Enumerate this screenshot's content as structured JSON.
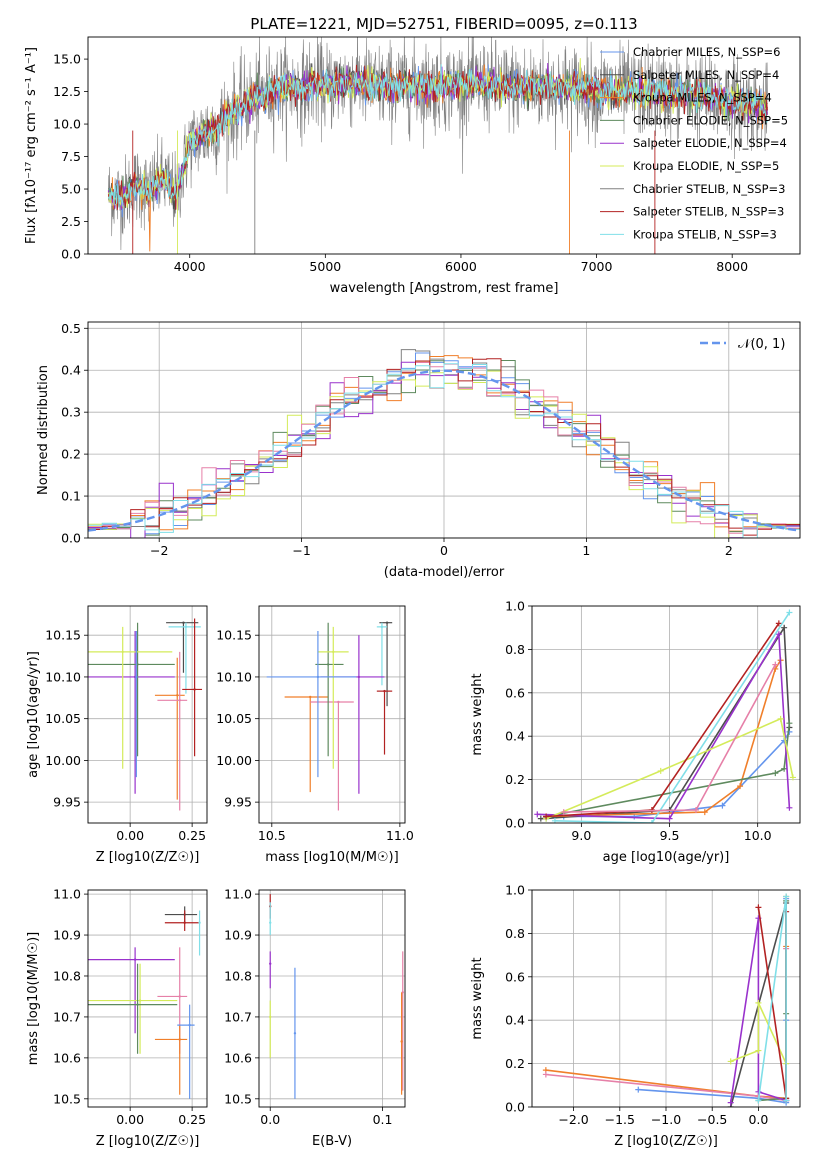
{
  "chart_data": [
    {
      "id": "spectrum",
      "type": "line",
      "title": "PLATE=1221, MJD=52751, FIBERID=0095, z=0.113",
      "xlabel": "wavelength [Angstrom, rest frame]",
      "ylabel": "Flux [fλ10⁻¹⁷ erg cm⁻² s⁻¹ A⁻¹]",
      "xlim": [
        3250,
        8500
      ],
      "ylim": [
        0,
        16.7
      ],
      "xticks": [
        4000,
        5000,
        6000,
        7000,
        8000
      ],
      "yticks": [
        0.0,
        2.5,
        5.0,
        7.5,
        10.0,
        12.5,
        15.0
      ],
      "grid": false,
      "legend_position": "top-right",
      "series": [
        {
          "name": "Chabrier MILES, N_SSP=6",
          "color": "#6495ed"
        },
        {
          "name": "Salpeter MILES, N_SSP=4",
          "color": "#4d4d4d"
        },
        {
          "name": "Kroupa MILES, N_SSP=4",
          "color": "#f07f2a"
        },
        {
          "name": "Chabrier ELODIE, N_SSP=5",
          "color": "#5e8a5e"
        },
        {
          "name": "Salpeter ELODIE, N_SSP=4",
          "color": "#9932cc"
        },
        {
          "name": "Kroupa ELODIE, N_SSP=5",
          "color": "#d4eb5a"
        },
        {
          "name": "Chabrier STELIB, N_SSP=3",
          "color": "#808080"
        },
        {
          "name": "Salpeter STELIB, N_SSP=3",
          "color": "#b22222"
        },
        {
          "name": "Kroupa STELIB, N_SSP=3",
          "color": "#80dfe8"
        }
      ],
      "continuum": {
        "x": [
          3400,
          3500,
          3600,
          3700,
          3800,
          3900,
          4000,
          4100,
          4200,
          4300,
          4400,
          4500,
          4600,
          4700,
          4800,
          4900,
          5000,
          5200,
          5400,
          5600,
          5800,
          6000,
          6200,
          6400,
          6600,
          6800,
          7000,
          7200,
          7400,
          7600,
          7800,
          8000,
          8200,
          8260
        ],
        "y": [
          4.6,
          4.3,
          5.3,
          4.8,
          5.8,
          4.5,
          8.5,
          9.2,
          9.8,
          10.8,
          11.5,
          12.0,
          12.6,
          12.9,
          12.6,
          13.1,
          12.9,
          13.3,
          12.8,
          13.0,
          12.9,
          13.0,
          13.1,
          12.8,
          12.9,
          12.8,
          12.6,
          12.5,
          12.4,
          12.3,
          12.1,
          11.8,
          11.4,
          11.0
        ]
      }
    },
    {
      "id": "residuals",
      "type": "histogram",
      "xlabel": "(data-model)/error",
      "ylabel": "Normed distribution",
      "xlim": [
        -2.5,
        2.5
      ],
      "ylim": [
        0,
        0.515
      ],
      "xticks": [
        -2,
        -1,
        0,
        1,
        2
      ],
      "yticks": [
        0.0,
        0.1,
        0.2,
        0.3,
        0.4,
        0.5
      ],
      "grid": true,
      "legend_position": "top-right",
      "legend_label": "𝒩(0, 1)",
      "reference_curve": "normal(0,1)",
      "bin_width": 0.1
    },
    {
      "id": "z-age",
      "type": "scatter",
      "xlabel": "Z [log10(Z/Z☉)]",
      "ylabel": "age  [log10(age/yr)]",
      "xlim": [
        -0.17,
        0.31
      ],
      "ylim": [
        9.925,
        10.185
      ],
      "xticks": [
        0.0,
        0.25
      ],
      "yticks": [
        9.95,
        10.0,
        10.05,
        10.1,
        10.15
      ],
      "grid": true,
      "points": [
        {
          "x": 0.215,
          "y": 10.165,
          "xerr": [
            0.07,
            0.06
          ],
          "yerr": [
            0.06,
            0.0
          ],
          "color": "#4d4d4d"
        },
        {
          "x": 0.225,
          "y": 10.16,
          "xerr": [
            0.07,
            0.06
          ],
          "yerr": [
            0.08,
            0.005
          ],
          "color": "#80dfe8"
        },
        {
          "x": 0.26,
          "y": 10.085,
          "xerr": [
            0.05,
            0.03
          ],
          "yerr": [
            0.08,
            0.085
          ],
          "color": "#b22222"
        },
        {
          "x": 0.19,
          "y": 10.078,
          "xerr": [
            0.09,
            0.03
          ],
          "yerr": [
            0.125,
            0.045
          ],
          "color": "#f07f2a"
        },
        {
          "x": 0.2,
          "y": 10.072,
          "xerr": [
            0.09,
            0.03
          ],
          "yerr": [
            0.132,
            0.058
          ],
          "color": "#e680a8"
        },
        {
          "x": 0.02,
          "y": 10.1,
          "xerr": [
            0.19,
            0.16
          ],
          "yerr": [
            0.14,
            0.055
          ],
          "color": "#9932cc"
        },
        {
          "x": 0.03,
          "y": 10.115,
          "xerr": [
            0.2,
            0.15
          ],
          "yerr": [
            0.11,
            0.05
          ],
          "color": "#5e8a5e"
        },
        {
          "x": -0.03,
          "y": 10.13,
          "xerr": [
            0.2,
            0.2
          ],
          "yerr": [
            0.14,
            0.03
          ],
          "color": "#d4eb5a"
        },
        {
          "x": 0.025,
          "y": 10.1,
          "xerr": [
            0.0,
            0.0
          ],
          "yerr": [
            0.12,
            0.055
          ],
          "color": "#6495ed"
        }
      ]
    },
    {
      "id": "mass-age",
      "type": "scatter",
      "xlabel": "mass [log10(M/M☉)]",
      "ylabel": "",
      "xlim": [
        10.45,
        11.02
      ],
      "ylim": [
        9.925,
        10.185
      ],
      "xticks": [
        10.5,
        11.0
      ],
      "yticks": [
        9.95,
        10.0,
        10.05,
        10.1,
        10.15
      ],
      "grid": true,
      "points": [
        {
          "x": 10.95,
          "y": 10.165,
          "xerr": [
            0.03,
            0.02
          ],
          "yerr": [
            0.1,
            0.0
          ],
          "color": "#4d4d4d"
        },
        {
          "x": 10.93,
          "y": 10.16,
          "xerr": [
            0.02,
            0.02
          ],
          "yerr": [
            0.07,
            0.005
          ],
          "color": "#80dfe8"
        },
        {
          "x": 10.94,
          "y": 10.083,
          "xerr": [
            0.03,
            0.03
          ],
          "yerr": [
            0.076,
            0.0
          ],
          "color": "#b22222"
        },
        {
          "x": 10.65,
          "y": 10.076,
          "xerr": [
            0.1,
            0.07
          ],
          "yerr": [
            0.114,
            0.0
          ],
          "color": "#f07f2a"
        },
        {
          "x": 10.76,
          "y": 10.07,
          "xerr": [
            0.11,
            0.06
          ],
          "yerr": [
            0.13,
            0.0
          ],
          "color": "#e680a8"
        },
        {
          "x": 10.84,
          "y": 10.1,
          "xerr": [
            0.15,
            0.1
          ],
          "yerr": [
            0.14,
            0.05
          ],
          "color": "#9932cc"
        },
        {
          "x": 10.72,
          "y": 10.115,
          "xerr": [
            0.05,
            0.06
          ],
          "yerr": [
            0.11,
            0.05
          ],
          "color": "#5e8a5e"
        },
        {
          "x": 10.74,
          "y": 10.13,
          "xerr": [
            0.06,
            0.06
          ],
          "yerr": [
            0.14,
            0.03
          ],
          "color": "#d4eb5a"
        },
        {
          "x": 10.68,
          "y": 10.1,
          "xerr": [
            0.2,
            0.15
          ],
          "yerr": [
            0.12,
            0.055
          ],
          "color": "#6495ed"
        }
      ]
    },
    {
      "id": "age-weight",
      "type": "line",
      "xlabel": "age  [log10(age/yr)]",
      "ylabel": "mass weight",
      "xlim": [
        8.72,
        10.24
      ],
      "ylim": [
        0,
        1.0
      ],
      "xticks": [
        9.0,
        9.5,
        10.0
      ],
      "yticks": [
        0.0,
        0.2,
        0.4,
        0.6,
        0.8,
        1.0
      ],
      "grid": true,
      "series": [
        {
          "color": "#6495ed",
          "x": [
            8.8,
            8.9,
            9.3,
            9.8,
            10.15,
            10.18
          ],
          "y": [
            0.02,
            0.03,
            0.03,
            0.08,
            0.38,
            0.42
          ]
        },
        {
          "color": "#4d4d4d",
          "x": [
            8.77,
            9.5,
            10.15,
            10.18
          ],
          "y": [
            0.02,
            0.06,
            0.9,
            0.44
          ]
        },
        {
          "color": "#f07f2a",
          "x": [
            8.8,
            9.7,
            9.9,
            10.1,
            10.13
          ],
          "y": [
            0.03,
            0.05,
            0.17,
            0.71,
            0.75
          ]
        },
        {
          "color": "#5e8a5e",
          "x": [
            8.8,
            10.1,
            10.15,
            10.18
          ],
          "y": [
            0.03,
            0.23,
            0.25,
            0.46
          ]
        },
        {
          "color": "#9932cc",
          "x": [
            8.75,
            9.5,
            10.12,
            10.18
          ],
          "y": [
            0.04,
            0.02,
            0.87,
            0.07
          ]
        },
        {
          "color": "#d4eb5a",
          "x": [
            8.8,
            9.45,
            10.13,
            10.2
          ],
          "y": [
            0.02,
            0.24,
            0.48,
            0.21
          ]
        },
        {
          "color": "#b22222",
          "x": [
            8.8,
            9.4,
            10.12
          ],
          "y": [
            0.03,
            0.06,
            0.92
          ]
        },
        {
          "color": "#80dfe8",
          "x": [
            8.85,
            9.4,
            10.18
          ],
          "y": [
            0.01,
            0.0,
            0.97
          ]
        },
        {
          "color": "#e680a8",
          "x": [
            8.9,
            9.65,
            10.1
          ],
          "y": [
            0.05,
            0.06,
            0.73
          ]
        }
      ]
    },
    {
      "id": "z-mass",
      "type": "scatter",
      "xlabel": "Z [log10(Z/Z☉)]",
      "ylabel": "mass [log10(M/M☉)]",
      "xlim": [
        -0.17,
        0.31
      ],
      "ylim": [
        10.48,
        11.01
      ],
      "xticks": [
        0.0,
        0.25
      ],
      "yticks": [
        10.5,
        10.6,
        10.7,
        10.8,
        10.9,
        11.0
      ],
      "grid": true,
      "points": [
        {
          "x": 0.22,
          "y": 10.95,
          "xerr": [
            0.08,
            0.05
          ],
          "yerr": [
            0.02,
            0.02
          ],
          "color": "#4d4d4d"
        },
        {
          "x": 0.22,
          "y": 10.93,
          "xerr": [
            0.08,
            0.06
          ],
          "yerr": [
            0.02,
            0.03
          ],
          "color": "#b22222"
        },
        {
          "x": 0.28,
          "y": 10.93,
          "xerr": [
            0.0,
            0.0
          ],
          "yerr": [
            0.08,
            0.03
          ],
          "color": "#80dfe8"
        },
        {
          "x": 0.02,
          "y": 10.84,
          "xerr": [
            0.19,
            0.16
          ],
          "yerr": [
            0.18,
            0.03
          ],
          "color": "#9932cc"
        },
        {
          "x": 0.04,
          "y": 10.74,
          "xerr": [
            0.21,
            0.15
          ],
          "yerr": [
            0.13,
            0.09
          ],
          "color": "#d4eb5a"
        },
        {
          "x": 0.03,
          "y": 10.73,
          "xerr": [
            0.2,
            0.16
          ],
          "yerr": [
            0.12,
            0.1
          ],
          "color": "#5e8a5e"
        },
        {
          "x": 0.2,
          "y": 10.75,
          "xerr": [
            0.09,
            0.03
          ],
          "yerr": [
            0.14,
            0.12
          ],
          "color": "#e680a8"
        },
        {
          "x": 0.2,
          "y": 10.645,
          "xerr": [
            0.1,
            0.03
          ],
          "yerr": [
            0.135,
            0.035
          ],
          "color": "#f07f2a"
        },
        {
          "x": 0.24,
          "y": 10.68,
          "xerr": [
            0.05,
            0.02
          ],
          "yerr": [
            0.18,
            0.05
          ],
          "color": "#6495ed"
        }
      ]
    },
    {
      "id": "ebv-mass",
      "type": "scatter",
      "xlabel": "E(B-V)",
      "ylabel": "",
      "xlim": [
        -0.01,
        0.12
      ],
      "ylim": [
        10.48,
        11.01
      ],
      "xticks": [
        0.0,
        0.1
      ],
      "yticks": [
        10.5,
        10.6,
        10.7,
        10.8,
        10.9,
        11.0
      ],
      "grid": true,
      "points": [
        {
          "x": 0.0,
          "y": 10.97,
          "yerr": [
            0.03,
            0.03
          ],
          "color": "#b22222"
        },
        {
          "x": 0.0,
          "y": 10.93,
          "yerr": [
            0.03,
            0.05
          ],
          "color": "#80dfe8"
        },
        {
          "x": 0.0,
          "y": 10.83,
          "yerr": [
            0.06,
            0.03
          ],
          "color": "#9932cc"
        },
        {
          "x": 0.0,
          "y": 10.7,
          "yerr": [
            0.1,
            0.04
          ],
          "color": "#d4eb5a"
        },
        {
          "x": 0.022,
          "y": 10.66,
          "yerr": [
            0.16,
            0.16
          ],
          "color": "#6495ed"
        },
        {
          "x": 0.118,
          "y": 10.76,
          "yerr": [
            0.24,
            0.1
          ],
          "color": "#e680a8"
        },
        {
          "x": 0.117,
          "y": 10.64,
          "yerr": [
            0.13,
            0.12
          ],
          "color": "#f07f2a"
        }
      ]
    },
    {
      "id": "z-weight",
      "type": "line",
      "xlabel": "Z [log10(Z/Z☉)]",
      "ylabel": "mass weight",
      "xlim": [
        -2.45,
        0.45
      ],
      "ylim": [
        0,
        1.0
      ],
      "xticks": [
        -2.0,
        -1.5,
        -1.0,
        -0.5,
        0.0
      ],
      "yticks": [
        0.0,
        0.2,
        0.4,
        0.6,
        0.8,
        1.0
      ],
      "grid": true,
      "series": [
        {
          "color": "#6495ed",
          "x": [
            -1.3,
            0.0,
            0.3,
            0.3,
            0.3
          ],
          "y": [
            0.08,
            0.04,
            0.02,
            0.96,
            0.4
          ]
        },
        {
          "color": "#f07f2a",
          "x": [
            -2.3,
            0.0,
            0.3,
            0.3,
            0.3
          ],
          "y": [
            0.17,
            0.05,
            0.04,
            0.97,
            0.74
          ]
        },
        {
          "color": "#e680a8",
          "x": [
            -2.3,
            0.0,
            0.3,
            0.3
          ],
          "y": [
            0.15,
            0.05,
            0.03,
            0.73
          ]
        },
        {
          "color": "#5e8a5e",
          "x": [
            0.0,
            0.3,
            0.3,
            0.3
          ],
          "y": [
            0.03,
            0.04,
            0.43,
            0.95
          ]
        },
        {
          "color": "#4d4d4d",
          "x": [
            -0.3,
            0.3,
            0.3
          ],
          "y": [
            0.0,
            0.94,
            0.03
          ]
        },
        {
          "color": "#9932cc",
          "x": [
            -0.3,
            0.0,
            0.0,
            0.3
          ],
          "y": [
            0.02,
            0.87,
            0.07,
            0.03
          ]
        },
        {
          "color": "#d4eb5a",
          "x": [
            -0.3,
            0.0,
            0.0,
            0.3
          ],
          "y": [
            0.21,
            0.26,
            0.48,
            0.2
          ]
        },
        {
          "color": "#b22222",
          "x": [
            0.0,
            0.3,
            0.3
          ],
          "y": [
            0.92,
            0.04,
            0.9
          ]
        },
        {
          "color": "#80dfe8",
          "x": [
            0.0,
            0.3,
            0.3
          ],
          "y": [
            0.03,
            0.97,
            0.03
          ]
        }
      ]
    }
  ]
}
